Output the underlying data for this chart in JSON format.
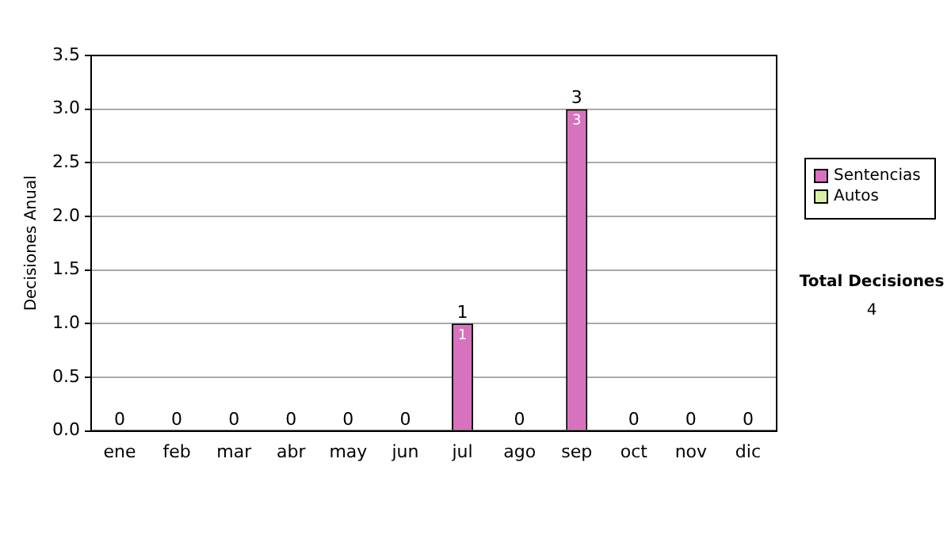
{
  "chart_data": {
    "type": "bar",
    "stacked": true,
    "ylabel": "Decisiones Anual",
    "categories": [
      "ene",
      "feb",
      "mar",
      "abr",
      "may",
      "jun",
      "jul",
      "ago",
      "sep",
      "oct",
      "nov",
      "dic"
    ],
    "series": [
      {
        "name": "Sentencias",
        "color": "#d672be",
        "values": [
          0,
          0,
          0,
          0,
          0,
          0,
          1,
          0,
          3,
          0,
          0,
          0
        ],
        "value_labels": [
          null,
          null,
          null,
          null,
          null,
          null,
          "1",
          null,
          "3",
          null,
          null,
          null
        ]
      },
      {
        "name": "Autos",
        "color": "#d9f0a3",
        "values": [
          0,
          0,
          0,
          0,
          0,
          0,
          0,
          0,
          0,
          0,
          0,
          0
        ]
      }
    ],
    "totals": [
      "0",
      "0",
      "0",
      "0",
      "0",
      "0",
      "1",
      "0",
      "3",
      "0",
      "0",
      "0"
    ],
    "ylim": [
      0,
      3.5
    ],
    "yticks": [
      {
        "value": 0,
        "label": "0.0"
      },
      {
        "value": 0.5,
        "label": "0.5"
      },
      {
        "value": 1,
        "label": "1.0"
      },
      {
        "value": 1.5,
        "label": "1.5"
      },
      {
        "value": 2,
        "label": "2.0"
      },
      {
        "value": 2.5,
        "label": "2.5"
      },
      {
        "value": 3,
        "label": "3.0"
      },
      {
        "value": 3.5,
        "label": "3.5"
      }
    ],
    "grid": "y",
    "legend": "right",
    "annotations": [
      "Total Decisiones",
      "4"
    ]
  }
}
